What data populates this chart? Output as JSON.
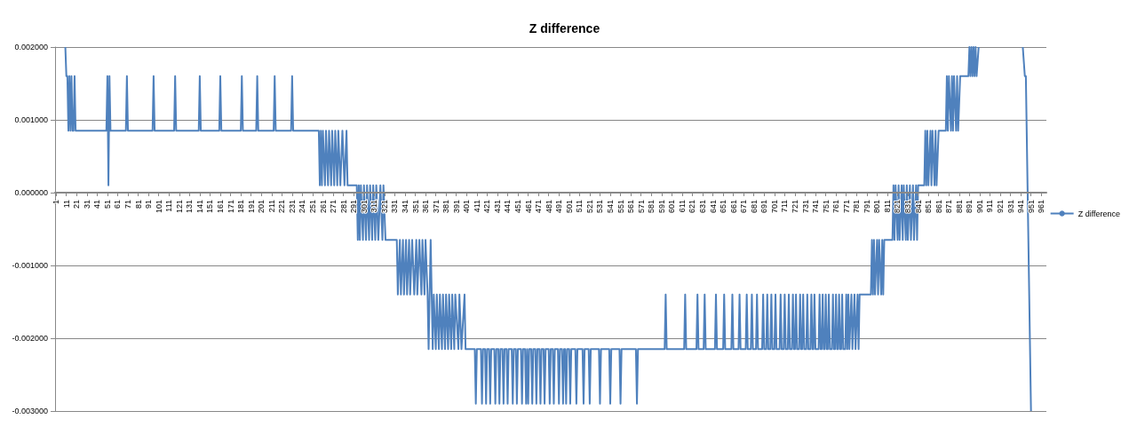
{
  "chart_data": {
    "type": "line",
    "title": "Z difference",
    "xlim": [
      0,
      966
    ],
    "xticks": [
      1,
      11,
      21,
      31,
      41,
      51,
      61,
      71,
      81,
      91,
      101,
      111,
      121,
      131,
      141,
      151,
      161,
      171,
      181,
      191,
      201,
      211,
      221,
      231,
      241,
      251,
      261,
      271,
      281,
      291,
      301,
      311,
      321,
      331,
      341,
      351,
      361,
      371,
      381,
      391,
      401,
      411,
      421,
      431,
      441,
      451,
      461,
      471,
      481,
      491,
      501,
      511,
      521,
      531,
      541,
      551,
      561,
      571,
      581,
      591,
      601,
      611,
      621,
      631,
      641,
      651,
      661,
      671,
      681,
      691,
      701,
      711,
      721,
      731,
      741,
      751,
      761,
      771,
      781,
      791,
      801,
      811,
      821,
      831,
      841,
      851,
      861,
      871,
      881,
      891,
      901,
      911,
      921,
      931,
      941,
      951,
      961
    ],
    "ylim": [
      -0.003,
      0.002
    ],
    "yticks": [
      {
        "value": -0.003,
        "label": "-0.003000"
      },
      {
        "value": -0.002,
        "label": "-0.002000"
      },
      {
        "value": -0.001,
        "label": "-0.001000"
      },
      {
        "value": 0,
        "label": "0.000000"
      },
      {
        "value": 0.001,
        "label": "0.001000"
      },
      {
        "value": 0.002,
        "label": "0.002000"
      }
    ],
    "grid": "y",
    "legend": "right",
    "marker": "none",
    "line_style": "solid",
    "series": [
      {
        "name": "Z difference",
        "color": "#4f81bd",
        "x": [
          10,
          11,
          12,
          13,
          14,
          15,
          16,
          17,
          18,
          19,
          20,
          50,
          51,
          52,
          53,
          54,
          69,
          70,
          71,
          95,
          96,
          97,
          116,
          117,
          118,
          140,
          141,
          142,
          160,
          161,
          162,
          181,
          182,
          183,
          196,
          197,
          198,
          213,
          214,
          215,
          230,
          231,
          232,
          257,
          258,
          259,
          260,
          261,
          263,
          264,
          266,
          267,
          269,
          270,
          272,
          273,
          275,
          276,
          278,
          280,
          282,
          284,
          285,
          294,
          295,
          296,
          297,
          298,
          300,
          301,
          303,
          304,
          306,
          307,
          309,
          310,
          312,
          313,
          315,
          317,
          319,
          320,
          322,
          333,
          334,
          336,
          337,
          339,
          340,
          342,
          343,
          345,
          346,
          348,
          350,
          352,
          353,
          355,
          357,
          358,
          360,
          361,
          363,
          364,
          365,
          366,
          367,
          368,
          369,
          371,
          372,
          374,
          375,
          377,
          378,
          380,
          381,
          383,
          384,
          386,
          387,
          389,
          390,
          393,
          394,
          396,
          399,
          400,
          409,
          410,
          411,
          415,
          416,
          417,
          419,
          420,
          421,
          423,
          424,
          425,
          428,
          429,
          430,
          432,
          433,
          434,
          436,
          437,
          438,
          440,
          441,
          442,
          445,
          446,
          447,
          449,
          450,
          451,
          454,
          455,
          456,
          458,
          459,
          460,
          461,
          462,
          464,
          465,
          466,
          468,
          469,
          470,
          472,
          473,
          474,
          476,
          477,
          478,
          481,
          482,
          483,
          485,
          486,
          487,
          490,
          491,
          492,
          494,
          495,
          496,
          497,
          498,
          499,
          501,
          502,
          503,
          507,
          508,
          509,
          514,
          515,
          516,
          520,
          521,
          522,
          530,
          531,
          532,
          540,
          541,
          542,
          550,
          551,
          552,
          566,
          567,
          568,
          594,
          595,
          596,
          613,
          614,
          615,
          625,
          626,
          627,
          632,
          633,
          634,
          643,
          644,
          645,
          651,
          652,
          653,
          659,
          660,
          661,
          666,
          667,
          668,
          673,
          674,
          675,
          678,
          679,
          680,
          683,
          684,
          685,
          689,
          690,
          691,
          693,
          694,
          695,
          697,
          698,
          699,
          701,
          702,
          703,
          706,
          707,
          708,
          710,
          711,
          712,
          714,
          715,
          716,
          718,
          719,
          720,
          721,
          722,
          723,
          725,
          726,
          727,
          728,
          729,
          730,
          732,
          733,
          734,
          736,
          737,
          738,
          739,
          740,
          741,
          744,
          745,
          746,
          747,
          748,
          749,
          750,
          751,
          752,
          753,
          754,
          755,
          757,
          758,
          759,
          760,
          761,
          762,
          763,
          764,
          765,
          766,
          767,
          768,
          770,
          771,
          772,
          773,
          774,
          776,
          777,
          779,
          780,
          782,
          783,
          784,
          795,
          796,
          797,
          798,
          799,
          801,
          802,
          803,
          805,
          806,
          807,
          808,
          816,
          817,
          818,
          819,
          821,
          822,
          823,
          825,
          826,
          827,
          829,
          830,
          831,
          833,
          834,
          836,
          837,
          839,
          840,
          841,
          847,
          848,
          849,
          850,
          851,
          853,
          854,
          855,
          857,
          858,
          859,
          861,
          868,
          869,
          870,
          871,
          873,
          874,
          875,
          876,
          878,
          879,
          880,
          882,
          890,
          891,
          892,
          893,
          894,
          895,
          896,
          897,
          898,
          900,
          901,
          943,
          945,
          946,
          951
        ],
        "values": [
          0.002,
          0.0016,
          0.0016,
          0.00085,
          0.0016,
          0.00085,
          0.0016,
          0.00085,
          0.00085,
          0.0016,
          0.00085,
          0.00085,
          0.0016,
          0.0001,
          0.0016,
          0.00085,
          0.00085,
          0.0016,
          0.00085,
          0.00085,
          0.0016,
          0.00085,
          0.00085,
          0.0016,
          0.00085,
          0.00085,
          0.0016,
          0.00085,
          0.00085,
          0.0016,
          0.00085,
          0.00085,
          0.0016,
          0.00085,
          0.00085,
          0.0016,
          0.00085,
          0.00085,
          0.0016,
          0.00085,
          0.00085,
          0.0016,
          0.00085,
          0.00085,
          0.0001,
          0.00085,
          0.0001,
          0.00085,
          0.0001,
          0.00085,
          0.0001,
          0.00085,
          0.0001,
          0.00085,
          0.0001,
          0.00085,
          0.0001,
          0.00085,
          0.0001,
          0.00085,
          0.0001,
          0.00085,
          0.0001,
          0.0001,
          -0.00065,
          0.0001,
          -0.00065,
          0.0001,
          -0.00065,
          0.0001,
          -0.00065,
          0.0001,
          -0.00065,
          0.0001,
          -0.00065,
          0.0001,
          -0.00065,
          0.0001,
          -0.00065,
          0.0001,
          -0.00065,
          0.0001,
          -0.00065,
          -0.00065,
          -0.0014,
          -0.00065,
          -0.0014,
          -0.00065,
          -0.0014,
          -0.00065,
          -0.0014,
          -0.00065,
          -0.0014,
          -0.00065,
          -0.0014,
          -0.00065,
          -0.0014,
          -0.00065,
          -0.0014,
          -0.00065,
          -0.0014,
          -0.00065,
          -0.0014,
          -0.00215,
          -0.0014,
          -0.00065,
          -0.0014,
          -0.00215,
          -0.0014,
          -0.00215,
          -0.0014,
          -0.00215,
          -0.0014,
          -0.00215,
          -0.0014,
          -0.00215,
          -0.0014,
          -0.00215,
          -0.0014,
          -0.00215,
          -0.0014,
          -0.00215,
          -0.0014,
          -0.00215,
          -0.0014,
          -0.00215,
          -0.0014,
          -0.00215,
          -0.00215,
          -0.0029,
          -0.00215,
          -0.00215,
          -0.0029,
          -0.00215,
          -0.00215,
          -0.0029,
          -0.00215,
          -0.00215,
          -0.0029,
          -0.00215,
          -0.00215,
          -0.0029,
          -0.00215,
          -0.00215,
          -0.0029,
          -0.00215,
          -0.00215,
          -0.0029,
          -0.00215,
          -0.00215,
          -0.0029,
          -0.00215,
          -0.00215,
          -0.0029,
          -0.00215,
          -0.00215,
          -0.0029,
          -0.00215,
          -0.00215,
          -0.0029,
          -0.00215,
          -0.00215,
          -0.0029,
          -0.00215,
          -0.0029,
          -0.00215,
          -0.00215,
          -0.0029,
          -0.00215,
          -0.00215,
          -0.0029,
          -0.00215,
          -0.00215,
          -0.0029,
          -0.00215,
          -0.00215,
          -0.0029,
          -0.00215,
          -0.00215,
          -0.0029,
          -0.00215,
          -0.00215,
          -0.0029,
          -0.00215,
          -0.00215,
          -0.0029,
          -0.00215,
          -0.00215,
          -0.0029,
          -0.00215,
          -0.00215,
          -0.0029,
          -0.00215,
          -0.00215,
          -0.0029,
          -0.00215,
          -0.00215,
          -0.0029,
          -0.00215,
          -0.00215,
          -0.0029,
          -0.00215,
          -0.00215,
          -0.0029,
          -0.00215,
          -0.00215,
          -0.0029,
          -0.00215,
          -0.00215,
          -0.0029,
          -0.00215,
          -0.00215,
          -0.0029,
          -0.00215,
          -0.00215,
          -0.0029,
          -0.00215,
          -0.00215,
          -0.0014,
          -0.00215,
          -0.00215,
          -0.0014,
          -0.00215,
          -0.00215,
          -0.0014,
          -0.00215,
          -0.00215,
          -0.0014,
          -0.00215,
          -0.00215,
          -0.0014,
          -0.00215,
          -0.00215,
          -0.0014,
          -0.00215,
          -0.00215,
          -0.0014,
          -0.00215,
          -0.00215,
          -0.0014,
          -0.00215,
          -0.00215,
          -0.0014,
          -0.00215,
          -0.00215,
          -0.0014,
          -0.00215,
          -0.00215,
          -0.0014,
          -0.00215,
          -0.00215,
          -0.0014,
          -0.00215,
          -0.00215,
          -0.0014,
          -0.00215,
          -0.00215,
          -0.0014,
          -0.00215,
          -0.00215,
          -0.0014,
          -0.00215,
          -0.00215,
          -0.0014,
          -0.00215,
          -0.00215,
          -0.0014,
          -0.00215,
          -0.00215,
          -0.0014,
          -0.00215,
          -0.00215,
          -0.0014,
          -0.00215,
          -0.00215,
          -0.0014,
          -0.00215,
          -0.00215,
          -0.0014,
          -0.00215,
          -0.00215,
          -0.0014,
          -0.00215,
          -0.00215,
          -0.0014,
          -0.00215,
          -0.00215,
          -0.0014,
          -0.00215,
          -0.00215,
          -0.0014,
          -0.00215,
          -0.00215,
          -0.0014,
          -0.00215,
          -0.00215,
          -0.0014,
          -0.00215,
          -0.00215,
          -0.0014,
          -0.00215,
          -0.00215,
          -0.0014,
          -0.00215,
          -0.00215,
          -0.0014,
          -0.00215,
          -0.00215,
          -0.0014,
          -0.00215,
          -0.00215,
          -0.0014,
          -0.00215,
          -0.00215,
          -0.0014,
          -0.00215,
          -0.00215,
          -0.0014,
          -0.00215,
          -0.0014,
          -0.00215,
          -0.0014,
          -0.00215,
          -0.0014,
          -0.00215,
          -0.0014,
          -0.00215,
          -0.0014,
          -0.0014,
          -0.00065,
          -0.0014,
          -0.00065,
          -0.0014,
          -0.00065,
          -0.0014,
          -0.00065,
          -0.0014,
          -0.00065,
          -0.0014,
          -0.00065,
          -0.00065,
          0.0001,
          -0.00065,
          0.0001,
          -0.00065,
          0.0001,
          -0.00065,
          0.0001,
          -0.00065,
          0.0001,
          -0.00065,
          0.0001,
          -0.00065,
          0.0001,
          -0.00065,
          0.0001,
          -0.00065,
          0.0001,
          -0.00065,
          0.0001,
          0.0001,
          0.00085,
          0.0001,
          0.00085,
          0.0001,
          0.00085,
          0.0001,
          0.00085,
          0.0001,
          0.00085,
          0.0001,
          0.00085,
          0.00085,
          0.0016,
          0.00085,
          0.0016,
          0.00085,
          0.0016,
          0.00085,
          0.0016,
          0.00085,
          0.0016,
          0.00085,
          0.0016,
          0.0016,
          0.002,
          0.0016,
          0.002,
          0.0016,
          0.002,
          0.0016,
          0.002,
          0.0016,
          0.002,
          null,
          0.002,
          0.0016,
          0.0016,
          -0.003
        ]
      }
    ]
  }
}
